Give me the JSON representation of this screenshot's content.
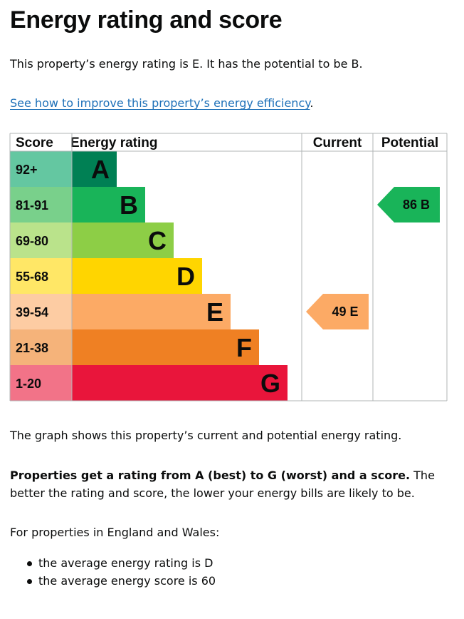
{
  "page": {
    "title": "Energy rating and score",
    "rating_intro": "This property’s energy rating is E. It has the potential to be B.",
    "improve_link": "See how to improve this property’s energy efficiency",
    "improve_suffix": ".",
    "graph_description": "The graph shows this property’s current and potential energy rating.",
    "rating_explain_bold": "Properties get a rating from A (best) to G (worst) and a score.",
    "rating_explain_rest": " The better the rating and score, the lower your energy bills are likely to be.",
    "regions_intro": "For properties in England and Wales:",
    "averages": [
      "the average energy rating is D",
      "the average energy score is 60"
    ]
  },
  "chart_data": {
    "type": "bar",
    "headers": {
      "score": "Score",
      "rating": "Energy rating",
      "current": "Current",
      "potential": "Potential"
    },
    "bands": [
      {
        "letter": "A",
        "range": "92+",
        "min": 92,
        "max": 100,
        "color": "#008054",
        "label_bg": "#64c7a1"
      },
      {
        "letter": "B",
        "range": "81-91",
        "min": 81,
        "max": 91,
        "color": "#19b459",
        "label_bg": "#79d08b"
      },
      {
        "letter": "C",
        "range": "69-80",
        "min": 69,
        "max": 80,
        "color": "#8dce46",
        "label_bg": "#bae38b"
      },
      {
        "letter": "D",
        "range": "55-68",
        "min": 55,
        "max": 68,
        "color": "#ffd500",
        "label_bg": "#ffe766"
      },
      {
        "letter": "E",
        "range": "39-54",
        "min": 39,
        "max": 54,
        "color": "#fcaa65",
        "label_bg": "#fdcca3"
      },
      {
        "letter": "F",
        "range": "21-38",
        "min": 21,
        "max": 38,
        "color": "#ef8023",
        "label_bg": "#f5b37a"
      },
      {
        "letter": "G",
        "range": "1-20",
        "min": 1,
        "max": 20,
        "color": "#e9153b",
        "label_bg": "#f27388"
      }
    ],
    "current": {
      "score": 49,
      "band": "E",
      "label": "49 E"
    },
    "potential": {
      "score": 86,
      "band": "B",
      "label": "86 B"
    }
  }
}
